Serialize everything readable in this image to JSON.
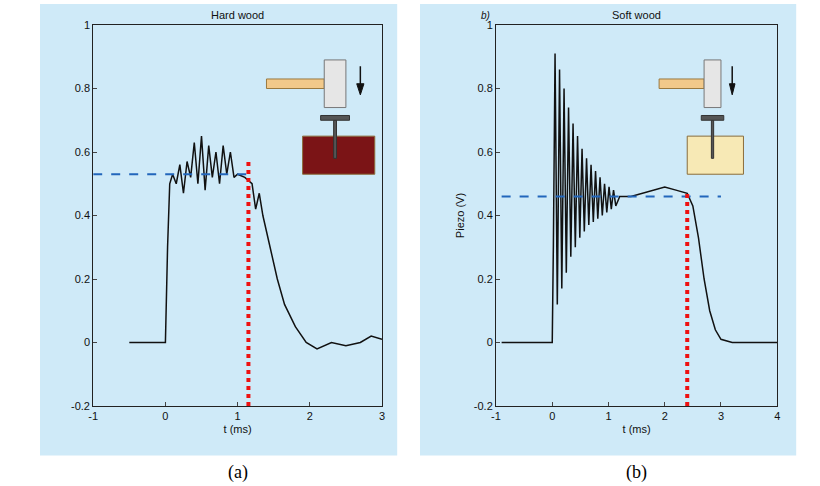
{
  "chart_data": [
    {
      "type": "line",
      "title": "Hard wood",
      "caption": "(a)",
      "xlabel": "t (ms)",
      "xlim": [
        -1,
        3
      ],
      "xticks": [
        -1,
        0,
        1,
        2,
        3
      ],
      "ylim": [
        -0.2,
        1
      ],
      "yticks": [
        -0.2,
        0,
        0.2,
        0.4,
        0.6,
        0.8,
        1
      ],
      "grid": false,
      "series": [
        {
          "color": "#111111",
          "line_style": "solid",
          "x": [
            -0.5,
            0,
            0.03,
            0.06,
            0.1,
            0.15,
            0.2,
            0.25,
            0.3,
            0.35,
            0.4,
            0.45,
            0.5,
            0.55,
            0.6,
            0.65,
            0.7,
            0.75,
            0.8,
            0.85,
            0.9,
            0.95,
            1.0,
            1.1,
            1.2,
            1.25,
            1.3,
            1.35,
            1.45,
            1.55,
            1.65,
            1.8,
            1.95,
            2.1,
            2.3,
            2.5,
            2.7,
            2.85,
            3.0
          ],
          "values": [
            0,
            0,
            0.3,
            0.5,
            0.53,
            0.5,
            0.56,
            0.47,
            0.57,
            0.52,
            0.63,
            0.5,
            0.65,
            0.48,
            0.62,
            0.52,
            0.6,
            0.5,
            0.62,
            0.53,
            0.6,
            0.52,
            0.53,
            0.52,
            0.5,
            0.42,
            0.47,
            0.4,
            0.3,
            0.2,
            0.12,
            0.05,
            0,
            -0.02,
            0,
            -0.01,
            0,
            0.02,
            0.01
          ]
        },
        {
          "color": "#2266bb",
          "line_style": "dashed",
          "x": [
            -1,
            1.2
          ],
          "values": [
            0.53,
            0.53
          ]
        },
        {
          "color": "#ee1111",
          "line_style": "dotted",
          "x": [
            1.15,
            1.15
          ],
          "values": [
            -0.2,
            0.57
          ]
        }
      ]
    },
    {
      "type": "line",
      "title": "Soft wood",
      "caption": "(b)",
      "panel_letter": "b)",
      "xlabel": "t (ms)",
      "ylabel": "Piezo (V)",
      "xlim": [
        -1,
        4
      ],
      "xticks": [
        -1,
        0,
        1,
        2,
        3,
        4
      ],
      "ylim": [
        -0.2,
        1
      ],
      "yticks": [
        -0.2,
        0,
        0.2,
        0.4,
        0.6,
        0.8,
        1
      ],
      "grid": false,
      "series": [
        {
          "color": "#111111",
          "line_style": "solid",
          "x": [
            -0.9,
            0,
            0.02,
            0.05,
            0.09,
            0.13,
            0.17,
            0.21,
            0.25,
            0.29,
            0.33,
            0.37,
            0.41,
            0.45,
            0.49,
            0.53,
            0.57,
            0.61,
            0.65,
            0.69,
            0.73,
            0.77,
            0.81,
            0.85,
            0.89,
            0.93,
            0.97,
            1.01,
            1.05,
            1.09,
            1.13,
            1.2,
            1.4,
            1.6,
            1.8,
            2.0,
            2.2,
            2.4,
            2.5,
            2.6,
            2.7,
            2.8,
            2.9,
            3.0,
            3.2,
            3.6,
            4.0
          ],
          "values": [
            0,
            0,
            0.3,
            0.91,
            0.12,
            0.86,
            0.17,
            0.8,
            0.22,
            0.74,
            0.27,
            0.69,
            0.3,
            0.65,
            0.33,
            0.61,
            0.35,
            0.58,
            0.37,
            0.56,
            0.38,
            0.54,
            0.39,
            0.52,
            0.4,
            0.5,
            0.41,
            0.49,
            0.42,
            0.48,
            0.43,
            0.46,
            0.46,
            0.47,
            0.48,
            0.49,
            0.48,
            0.47,
            0.43,
            0.33,
            0.2,
            0.1,
            0.04,
            0.01,
            0,
            0,
            0
          ]
        },
        {
          "color": "#2266bb",
          "line_style": "dashed",
          "x": [
            -0.9,
            3.0
          ],
          "values": [
            0.46,
            0.46
          ]
        },
        {
          "color": "#ee1111",
          "line_style": "dotted",
          "x": [
            2.4,
            2.4
          ],
          "values": [
            -0.2,
            0.48
          ]
        }
      ]
    }
  ]
}
